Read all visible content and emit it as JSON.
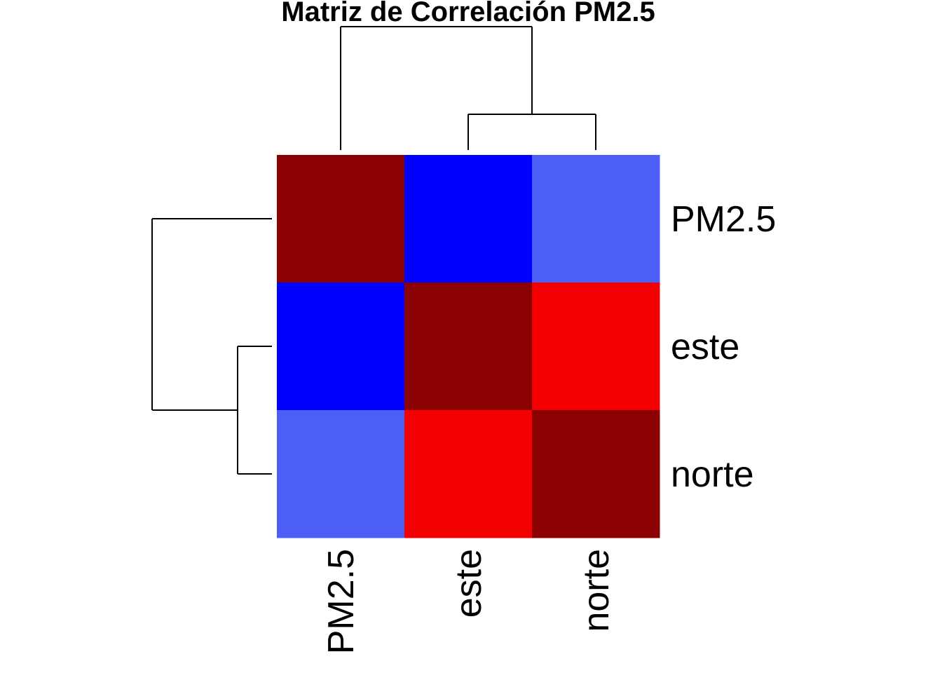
{
  "chart_data": {
    "type": "heatmap",
    "title": "Matriz de Correlación PM2.5",
    "row_labels": [
      "PM2.5",
      "este",
      "norte"
    ],
    "col_labels": [
      "PM2.5",
      "este",
      "norte"
    ],
    "values": [
      [
        1.0,
        -0.9,
        -0.5
      ],
      [
        -0.9,
        1.0,
        0.8
      ],
      [
        -0.5,
        0.8,
        1.0
      ]
    ],
    "color_scale": {
      "low": "#0000FF",
      "mid_low": "#4B5EF5",
      "mid_high": "#F20000",
      "high": "#8B0000"
    },
    "dendrogram": {
      "rows": "PM2.5 joins after (este, norte)",
      "cols": "PM2.5 joins after (este, norte)"
    },
    "legend": "none",
    "grid": false
  }
}
